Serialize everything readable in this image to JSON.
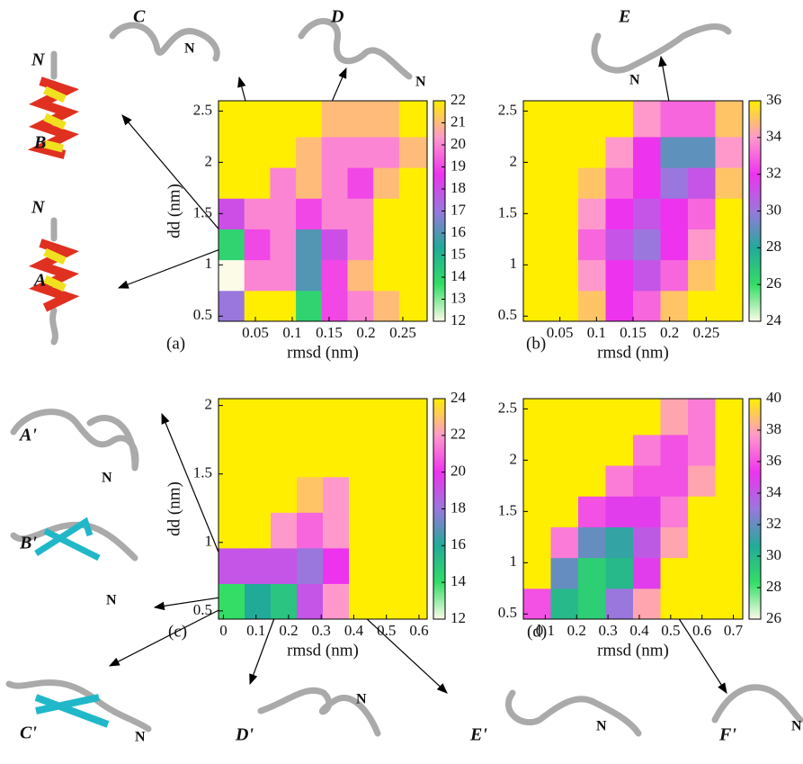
{
  "chart_data": [
    {
      "type": "heatmap",
      "panel_label": "(a)",
      "xlabel": "rmsd (nm)",
      "ylabel": "dd (nm)",
      "xlim": [
        0,
        0.283
      ],
      "ylim": [
        0.45,
        2.6
      ],
      "xticks": [
        0.05,
        0.1,
        0.15,
        0.2,
        0.25
      ],
      "yticks": [
        0.5,
        1,
        1.5,
        2,
        2.5
      ],
      "xbins": [
        0,
        0.035,
        0.07,
        0.105,
        0.14,
        0.175,
        0.21,
        0.245,
        0.283
      ],
      "ybins": [
        0.45,
        0.75,
        1.05,
        1.35,
        1.65,
        1.95,
        2.25,
        2.6
      ],
      "z": [
        [
          17,
          22,
          22,
          14,
          19,
          20,
          21,
          22
        ],
        [
          12,
          20,
          20,
          16,
          19,
          21,
          22,
          22
        ],
        [
          14,
          19,
          20,
          16,
          18,
          20,
          22,
          22
        ],
        [
          18,
          20,
          20,
          19,
          20,
          20,
          22,
          22
        ],
        [
          22,
          22,
          20,
          21,
          20,
          19,
          21,
          22
        ],
        [
          22,
          22,
          22,
          21,
          20,
          20,
          20,
          21
        ],
        [
          22,
          22,
          22,
          22,
          21,
          21,
          21,
          22
        ]
      ],
      "zlim": [
        12,
        22
      ],
      "zticks": [
        12,
        13,
        14,
        15,
        16,
        17,
        18,
        19,
        20,
        21,
        22
      ],
      "colormap": [
        "#fbfbe8",
        "#33dd66",
        "#22aa99",
        "#9977dd",
        "#ee33ee",
        "#ff99cc",
        "#ffee00"
      ]
    },
    {
      "type": "heatmap",
      "panel_label": "(b)",
      "xlabel": "rmsd (nm)",
      "xlim": [
        0,
        0.3
      ],
      "ylim": [
        0.45,
        2.6
      ],
      "xticks": [
        0.05,
        0.1,
        0.15,
        0.2,
        0.25
      ],
      "yticks": [
        0.5,
        1,
        1.5,
        2,
        2.5
      ],
      "xbins": [
        0,
        0.0375,
        0.075,
        0.1125,
        0.15,
        0.1875,
        0.225,
        0.2625,
        0.3
      ],
      "ybins": [
        0.45,
        0.75,
        1.05,
        1.35,
        1.65,
        1.95,
        2.25,
        2.6
      ],
      "z": [
        [
          36,
          36,
          35,
          32,
          33,
          35,
          36,
          36
        ],
        [
          36,
          36,
          34,
          32,
          31,
          33,
          35,
          36
        ],
        [
          36,
          36,
          33,
          31,
          30,
          32,
          34,
          36
        ],
        [
          36,
          36,
          34,
          32,
          31,
          32,
          33,
          36
        ],
        [
          36,
          36,
          35,
          33,
          32,
          30,
          31,
          35
        ],
        [
          36,
          36,
          36,
          34,
          32,
          29,
          29,
          34
        ],
        [
          36,
          36,
          36,
          36,
          34,
          33,
          33,
          35
        ]
      ],
      "zlim": [
        24,
        36
      ],
      "zticks": [
        24,
        26,
        28,
        30,
        32,
        34,
        36
      ],
      "colormap": [
        "#fbfbe8",
        "#33dd66",
        "#22aa99",
        "#9977dd",
        "#ee33ee",
        "#ff99cc",
        "#ffee00"
      ]
    },
    {
      "type": "heatmap",
      "panel_label": "(c)",
      "xlabel": "rmsd (nm)",
      "ylabel": "dd (nm)",
      "xlim": [
        -0.015,
        0.625
      ],
      "ylim": [
        0.44,
        2.05
      ],
      "xticks": [
        0,
        0.1,
        0.2,
        0.3,
        0.4,
        0.5,
        0.6
      ],
      "yticks": [
        0.5,
        1,
        1.5,
        2
      ],
      "xbins": [
        -0.015,
        0.065,
        0.145,
        0.225,
        0.305,
        0.385,
        0.465,
        0.545,
        0.625
      ],
      "ybins": [
        0.44,
        0.7,
        0.96,
        1.22,
        1.48,
        1.74,
        2.05
      ],
      "z": [
        [
          14,
          16,
          15,
          19,
          22,
          24,
          24,
          24
        ],
        [
          19,
          19,
          19,
          18,
          20,
          24,
          24,
          24
        ],
        [
          24,
          24,
          22,
          21,
          22,
          24,
          24,
          24
        ],
        [
          24,
          24,
          24,
          23,
          22,
          24,
          24,
          24
        ],
        [
          24,
          24,
          24,
          24,
          24,
          24,
          24,
          24
        ],
        [
          24,
          24,
          24,
          24,
          24,
          24,
          24,
          24
        ]
      ],
      "zlim": [
        12,
        24
      ],
      "zticks": [
        12,
        14,
        16,
        18,
        20,
        22,
        24
      ],
      "colormap": [
        "#fbfbe8",
        "#33dd66",
        "#22aa99",
        "#9977dd",
        "#ee33ee",
        "#ff99cc",
        "#ffee00"
      ]
    },
    {
      "type": "heatmap",
      "panel_label": "(d)",
      "xlabel": "rmsd (nm)",
      "xlim": [
        0.03,
        0.73
      ],
      "ylim": [
        0.45,
        2.6
      ],
      "xticks": [
        0.1,
        0.2,
        0.3,
        0.4,
        0.5,
        0.6,
        0.7
      ],
      "yticks": [
        0.5,
        1,
        1.5,
        2,
        2.5
      ],
      "xbins": [
        0.03,
        0.1175,
        0.205,
        0.2925,
        0.38,
        0.4675,
        0.555,
        0.6425,
        0.73
      ],
      "ybins": [
        0.45,
        0.75,
        1.05,
        1.35,
        1.65,
        1.95,
        2.25,
        2.6
      ],
      "z": [
        [
          36,
          30,
          29,
          33,
          38,
          40,
          40,
          40
        ],
        [
          40,
          32,
          29,
          30,
          35,
          40,
          40,
          40
        ],
        [
          40,
          37,
          32,
          31,
          34,
          38,
          40,
          40
        ],
        [
          40,
          40,
          36,
          35,
          35,
          37,
          40,
          40
        ],
        [
          40,
          40,
          40,
          37,
          36,
          36,
          38,
          40
        ],
        [
          40,
          40,
          40,
          40,
          37,
          36,
          37,
          40
        ],
        [
          40,
          40,
          40,
          40,
          40,
          38,
          37,
          40
        ]
      ],
      "zlim": [
        26,
        40
      ],
      "zticks": [
        26,
        28,
        30,
        32,
        34,
        36,
        38,
        40
      ],
      "colormap": [
        "#fbfbe8",
        "#33dd66",
        "#22aa99",
        "#9977dd",
        "#ee33ee",
        "#ff99cc",
        "#ffee00"
      ]
    }
  ],
  "annotations": [
    "C",
    "N",
    "D",
    "N",
    "E",
    "N",
    "N",
    "B",
    "N",
    "A",
    "A'",
    "N",
    "B'",
    "N",
    "C'",
    "N",
    "D'",
    "N",
    "E'",
    "N",
    "F'",
    "N"
  ]
}
